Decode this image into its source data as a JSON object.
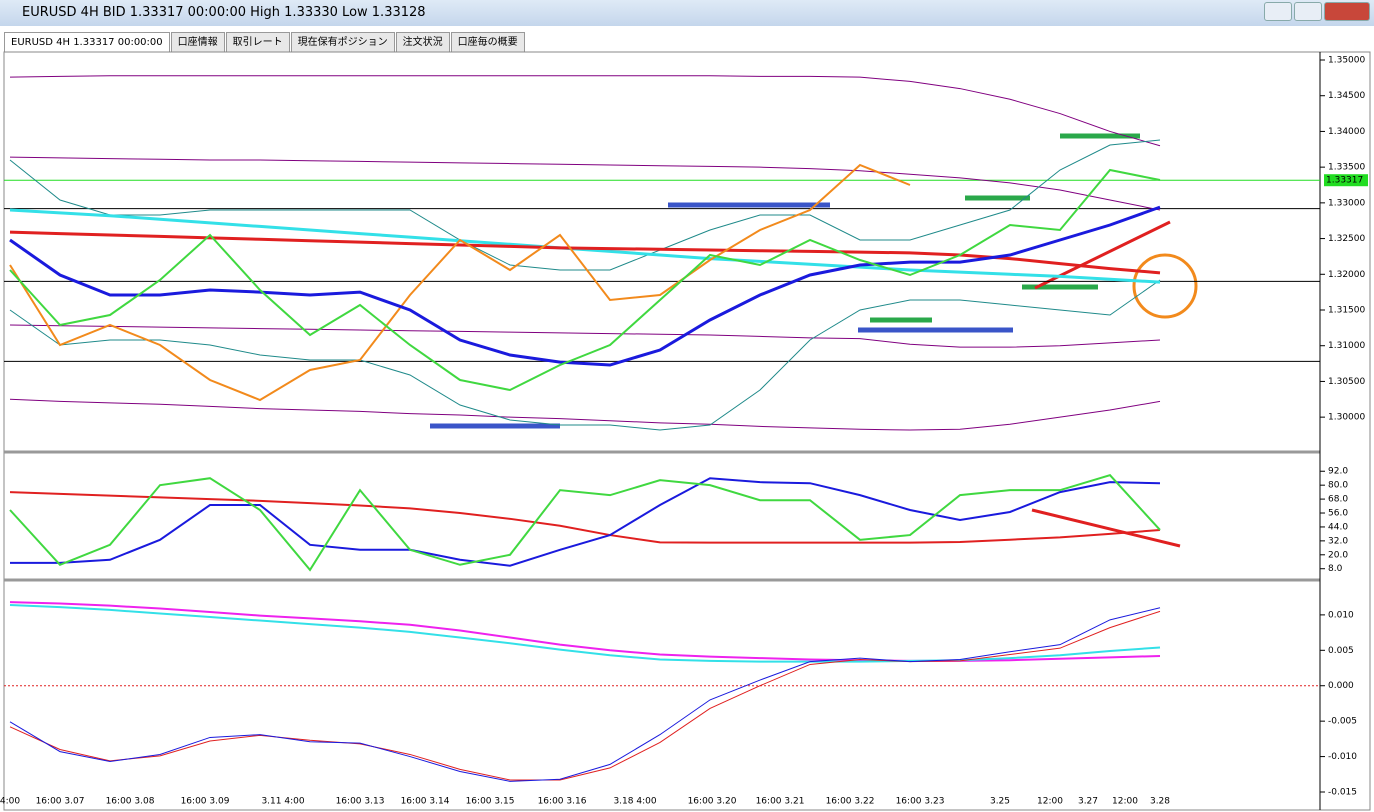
{
  "window": {
    "title": "EURUSD 4H BID 1.33317 00:00:00 High 1.33330 Low 1.33128",
    "tabs": [
      "EURUSD 4H 1.33317 00:00:00",
      "口座情報",
      "取引レート",
      "現在保有ポジション",
      "注文状況",
      "口座毎の概要"
    ]
  },
  "x_labels": [
    "4:00",
    "16:00 3.07",
    "16:00 3.08",
    "16:00 3.09",
    "3.11  4:00",
    "16:00 3.13",
    "16:00 3.14",
    "16:00 3.15",
    "16:00 3.16",
    "3.18  4:00",
    "16:00 3.20",
    "16:00 3.21",
    "16:00 3.22",
    "16:00 3.23",
    "3.25",
    "12:00",
    "3.27",
    "12:00",
    "3.28"
  ],
  "chart_data": [
    {
      "type": "line",
      "ylim": [
        1.2954,
        1.3514
      ],
      "yticks": [
        {
          "value": 1.35,
          "label": "1.35000"
        },
        {
          "value": 1.345,
          "label": "1.34500"
        },
        {
          "value": 1.34,
          "label": "1.34000"
        },
        {
          "value": 1.335,
          "label": "1.33500"
        },
        {
          "value": 1.33,
          "label": "1.33000"
        },
        {
          "value": 1.325,
          "label": "1.32500"
        },
        {
          "value": 1.32,
          "label": "1.32000"
        },
        {
          "value": 1.315,
          "label": "1.31500"
        },
        {
          "value": 1.31,
          "label": "1.31000"
        },
        {
          "value": 1.305,
          "label": "1.30500"
        },
        {
          "value": 1.3,
          "label": "1.30000"
        }
      ],
      "current_price": 1.33317,
      "hlines": [
        {
          "value": 1.33317,
          "color": "#22dd22"
        },
        {
          "value": 1.3292,
          "color": "#000000"
        },
        {
          "value": 1.319,
          "color": "#000000"
        },
        {
          "value": 1.3078,
          "color": "#000000"
        }
      ],
      "series": [
        {
          "color": "#800080",
          "width": 1,
          "values": [
            1.3476,
            1.3477,
            1.3478,
            1.3478,
            1.3478,
            1.3478,
            1.3478,
            1.3478,
            1.3478,
            1.3478,
            1.3478,
            1.3478,
            1.3478,
            1.3478,
            1.3478,
            1.3477,
            1.3477,
            1.3476,
            1.347,
            1.346,
            1.3445,
            1.3425,
            1.34,
            1.338
          ]
        },
        {
          "color": "#800080",
          "width": 1,
          "values": [
            1.3025,
            1.3022,
            1.302,
            1.3018,
            1.3015,
            1.3012,
            1.301,
            1.3008,
            1.3005,
            1.3003,
            1.3,
            1.2998,
            1.2995,
            1.2992,
            1.299,
            1.2987,
            1.2985,
            1.2983,
            1.2982,
            1.2983,
            1.299,
            1.3,
            1.301,
            1.3022
          ]
        },
        {
          "color": "#800080",
          "width": 1,
          "values": [
            1.3364,
            1.3363,
            1.3362,
            1.3361,
            1.336,
            1.336,
            1.3359,
            1.3358,
            1.3357,
            1.3356,
            1.3355,
            1.3354,
            1.3353,
            1.3352,
            1.3351,
            1.335,
            1.3348,
            1.3345,
            1.334,
            1.3335,
            1.3328,
            1.3318,
            1.3304,
            1.329
          ]
        },
        {
          "color": "#800080",
          "width": 1,
          "values": [
            1.3129,
            1.3128,
            1.3127,
            1.3126,
            1.3125,
            1.3124,
            1.3123,
            1.3122,
            1.3121,
            1.312,
            1.3119,
            1.3118,
            1.3117,
            1.3116,
            1.3115,
            1.3113,
            1.3111,
            1.311,
            1.3102,
            1.3098,
            1.3098,
            1.31,
            1.3104,
            1.3108
          ]
        },
        {
          "color": "#1f8a8a",
          "width": 1,
          "values": [
            1.336,
            1.3304,
            1.3283,
            1.3283,
            1.329,
            1.329,
            1.329,
            1.329,
            1.329,
            1.3248,
            1.3213,
            1.3206,
            1.3206,
            1.3234,
            1.3262,
            1.3283,
            1.3283,
            1.3248,
            1.3248,
            1.3269,
            1.329,
            1.3346,
            1.3381,
            1.3388
          ]
        },
        {
          "color": "#1f8a8a",
          "width": 1,
          "values": [
            1.315,
            1.3101,
            1.3108,
            1.3108,
            1.3101,
            1.3087,
            1.308,
            1.308,
            1.3059,
            1.3017,
            1.2996,
            1.2989,
            1.2989,
            1.2982,
            1.2989,
            1.3038,
            1.3108,
            1.315,
            1.3164,
            1.3164,
            1.3157,
            1.315,
            1.3143,
            1.3192
          ]
        },
        {
          "color": "#33e0e8",
          "width": 3,
          "values": [
            1.329,
            1.3286,
            1.3282,
            1.3277,
            1.3272,
            1.3267,
            1.3262,
            1.3257,
            1.3252,
            1.3247,
            1.3242,
            1.3237,
            1.3232,
            1.3227,
            1.3222,
            1.3218,
            1.3214,
            1.321,
            1.3206,
            1.3203,
            1.32,
            1.3197,
            1.3193,
            1.3189
          ]
        },
        {
          "color": "#e02020",
          "width": 3,
          "values": [
            1.3259,
            1.3257,
            1.3255,
            1.3253,
            1.3251,
            1.3249,
            1.3247,
            1.3245,
            1.3243,
            1.3241,
            1.3239,
            1.3237,
            1.3236,
            1.3235,
            1.3234,
            1.3233,
            1.3232,
            1.3231,
            1.323,
            1.3227,
            1.3222,
            1.3215,
            1.3208,
            1.3202
          ]
        },
        {
          "color": "#f28a1c",
          "width": 2,
          "values": [
            1.3213,
            1.3101,
            1.3129,
            1.3101,
            1.3052,
            1.3024,
            1.3066,
            1.308,
            1.3171,
            1.3248,
            1.3206,
            1.3255,
            1.3164,
            1.3171,
            1.322,
            1.3262,
            1.329,
            1.3353,
            1.3325,
            null,
            null,
            null,
            null,
            null
          ]
        },
        {
          "color": "#1a1add",
          "width": 3,
          "values": [
            1.3248,
            1.3199,
            1.3171,
            1.3171,
            1.3178,
            1.3175,
            1.3171,
            1.3175,
            1.315,
            1.3108,
            1.3087,
            1.3077,
            1.3073,
            1.3094,
            1.3136,
            1.3171,
            1.3199,
            1.3213,
            1.3217,
            1.3217,
            1.3227,
            1.3248,
            1.3269,
            1.3294
          ]
        },
        {
          "color": "#40d840",
          "width": 2,
          "values": [
            1.3206,
            1.3129,
            1.3143,
            1.3192,
            1.3255,
            1.3178,
            1.3115,
            1.3157,
            1.3101,
            1.3052,
            1.3038,
            1.3073,
            1.3101,
            1.3164,
            1.3227,
            1.3213,
            1.3248,
            1.322,
            1.3199,
            1.3227,
            1.3269,
            1.3262,
            1.3346,
            1.3332
          ]
        }
      ]
    },
    {
      "type": "line",
      "ylim": [
        0,
        106
      ],
      "yticks": [
        {
          "value": 92,
          "label": "92.0"
        },
        {
          "value": 80,
          "label": "80.0"
        },
        {
          "value": 68,
          "label": "68.0"
        },
        {
          "value": 56,
          "label": "56.0"
        },
        {
          "value": 44,
          "label": "44.0"
        },
        {
          "value": 32,
          "label": "32.0"
        },
        {
          "value": 20,
          "label": "20.0"
        },
        {
          "value": 8,
          "label": "8.0"
        }
      ],
      "series": [
        {
          "color": "#e02020",
          "width": 2,
          "values": [
            74,
            72.5,
            71,
            69.5,
            68,
            66.5,
            64.5,
            62.5,
            60,
            56,
            51,
            45,
            37,
            30.7,
            30.5,
            30.5,
            30.5,
            30.5,
            30.5,
            31,
            33,
            35,
            38,
            41.4
          ]
        },
        {
          "color": "#1a1add",
          "width": 2,
          "values": [
            13,
            13,
            15.7,
            32.9,
            62.9,
            62.9,
            28.6,
            24.3,
            24.3,
            15.7,
            10.6,
            24.3,
            37,
            62.9,
            86,
            82.6,
            81.7,
            71.4,
            58.6,
            50,
            56.9,
            74,
            82.6,
            81.7
          ]
        },
        {
          "color": "#40d840",
          "width": 2,
          "values": [
            58.6,
            11.4,
            28.6,
            80,
            86,
            58.6,
            7,
            75.7,
            24.3,
            11.4,
            20,
            75.7,
            71.4,
            84.3,
            80,
            67,
            67,
            32.9,
            37,
            71.4,
            75.7,
            75.7,
            88.6,
            41.4
          ]
        }
      ]
    },
    {
      "type": "line",
      "ylim": [
        -0.015,
        0.0145
      ],
      "yticks": [
        {
          "value": 0.01,
          "label": "0.010"
        },
        {
          "value": 0.005,
          "label": "0.005"
        },
        {
          "value": 0,
          "label": "0.000"
        },
        {
          "value": -0.005,
          "label": "-0.005"
        },
        {
          "value": -0.01,
          "label": "-0.010"
        },
        {
          "value": -0.015,
          "label": "-0.015"
        }
      ],
      "hlines": [
        {
          "value": 0,
          "color": "#e02020"
        }
      ],
      "series": [
        {
          "color": "#ee22ee",
          "width": 2,
          "values": [
            0.0118,
            0.0116,
            0.0113,
            0.0109,
            0.0104,
            0.0099,
            0.0095,
            0.0091,
            0.0086,
            0.0078,
            0.0068,
            0.0058,
            0.005,
            0.0044,
            0.0041,
            0.0039,
            0.0037,
            0.0036,
            0.0035,
            0.0035,
            0.0036,
            0.0038,
            0.004,
            0.0042
          ]
        },
        {
          "color": "#33e0e8",
          "width": 2,
          "values": [
            0.0114,
            0.0111,
            0.0107,
            0.0102,
            0.0097,
            0.0092,
            0.0087,
            0.0082,
            0.0076,
            0.0068,
            0.006,
            0.0051,
            0.0043,
            0.0037,
            0.0035,
            0.0034,
            0.0034,
            0.0034,
            0.0035,
            0.0036,
            0.0039,
            0.0043,
            0.0049,
            0.0054
          ]
        },
        {
          "color": "#e02020",
          "width": 1,
          "values": [
            -0.0058,
            -0.009,
            -0.0106,
            -0.0099,
            -0.0078,
            -0.007,
            -0.0077,
            -0.0082,
            -0.0097,
            -0.0118,
            -0.0133,
            -0.0133,
            -0.0116,
            -0.008,
            -0.0032,
            0,
            0.003,
            0.0037,
            0.0034,
            0.0035,
            0.0044,
            0.0053,
            0.0082,
            0.0105
          ]
        },
        {
          "color": "#1a1add",
          "width": 1,
          "values": [
            -0.0051,
            -0.0093,
            -0.0107,
            -0.0097,
            -0.0073,
            -0.0069,
            -0.0079,
            -0.0081,
            -0.01,
            -0.0121,
            -0.0135,
            -0.0132,
            -0.0111,
            -0.0069,
            -0.002,
            0.0008,
            0.0034,
            0.0039,
            0.0034,
            0.0037,
            0.0048,
            0.0058,
            0.0093,
            0.011
          ]
        }
      ]
    }
  ]
}
